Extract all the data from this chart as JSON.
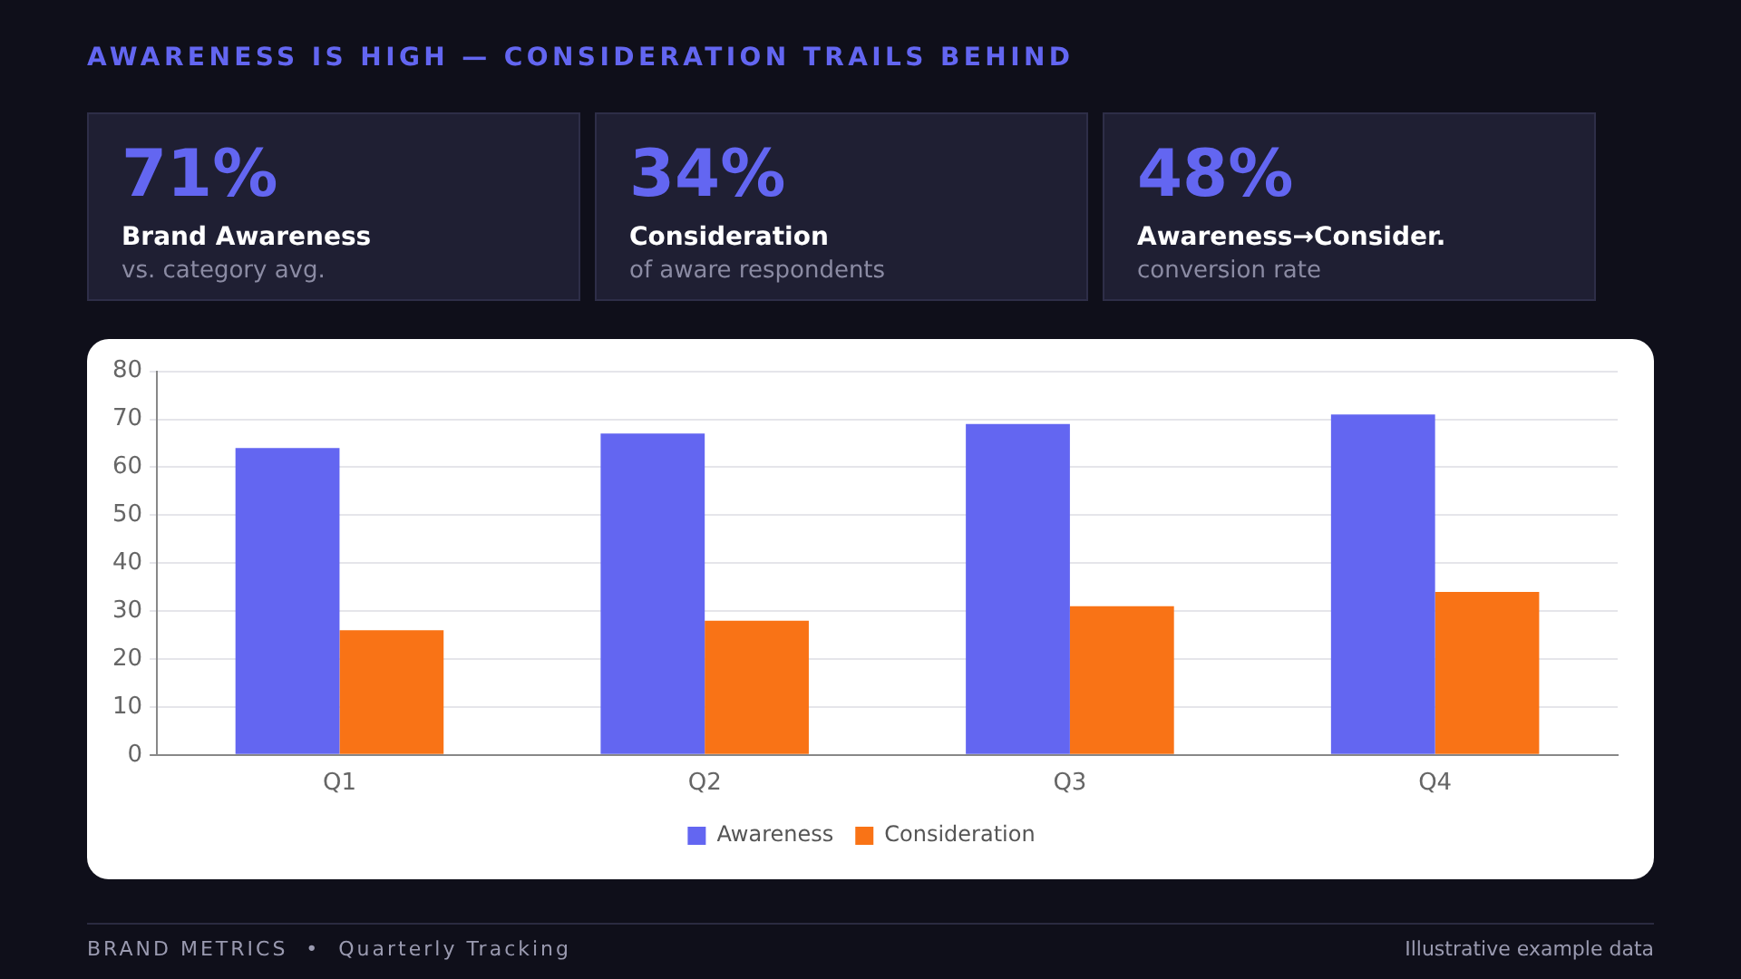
{
  "chart_data": [
    {
      "type": "other",
      "title": "71%",
      "subtitle": "Brand Awareness",
      "annotations": [
        "vs. category avg."
      ]
    },
    {
      "type": "other",
      "title": "34%",
      "subtitle": "Consideration",
      "annotations": [
        "of aware respondents"
      ]
    },
    {
      "type": "other",
      "title": "48%",
      "subtitle": "Awareness→Consider.",
      "annotations": [
        "conversion rate"
      ]
    },
    {
      "type": "bar",
      "title": "AWARENESS IS HIGH — CONSIDERATION TRAILS BEHIND",
      "categories": [
        "Q1",
        "Q2",
        "Q3",
        "Q4"
      ],
      "series": [
        {
          "name": "Awareness",
          "color": "#6366f1",
          "values": [
            64,
            67,
            69,
            71
          ]
        },
        {
          "name": "Consideration",
          "color": "#f97316",
          "values": [
            26,
            28,
            31,
            34
          ]
        }
      ],
      "ylim": [
        0,
        80
      ],
      "yticks": [
        0,
        10,
        20,
        30,
        40,
        50,
        60,
        70,
        80
      ],
      "grid": "y",
      "legend": "bottom",
      "annotations": [
        "BRAND METRICS  •  Quarterly Tracking",
        "Illustrative example data"
      ]
    }
  ]
}
